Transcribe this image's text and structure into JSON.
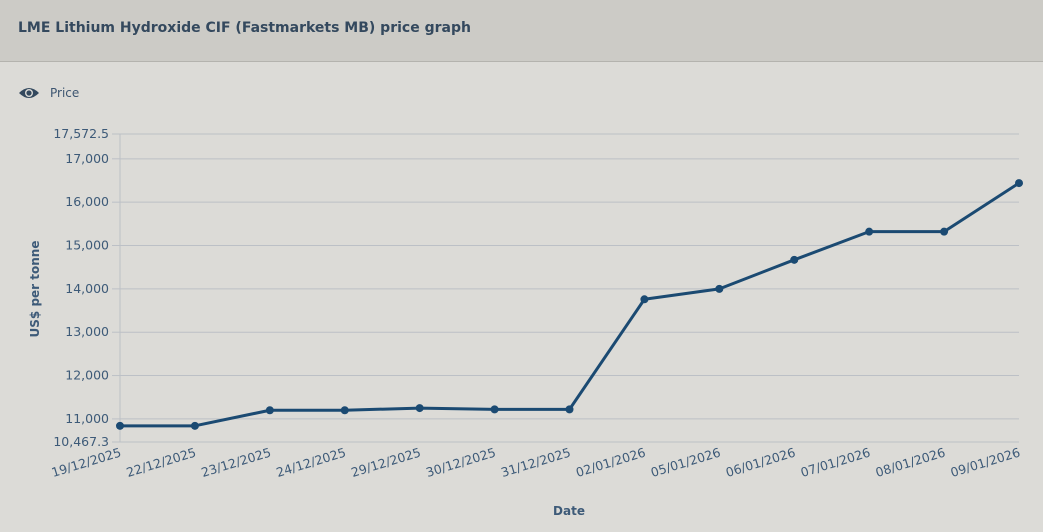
{
  "header": {
    "title": "LME Lithium Hydroxide CIF (Fastmarkets MB) price graph"
  },
  "legend": {
    "label": "Price",
    "icon": "eye-icon"
  },
  "chart_data": {
    "type": "line",
    "title": "LME Lithium Hydroxide CIF (Fastmarkets MB) price graph",
    "xlabel": "Date",
    "ylabel": "US$ per tonne",
    "ylim": [
      10467.3,
      17572.5
    ],
    "yticks": [
      10467.3,
      11000,
      12000,
      13000,
      14000,
      15000,
      16000,
      17000,
      17572.5
    ],
    "ytick_labels": [
      "10,467.3",
      "11,000",
      "12,000",
      "13,000",
      "14,000",
      "15,000",
      "16,000",
      "17,000",
      "17,572.5"
    ],
    "categories": [
      "19/12/2025",
      "22/12/2025",
      "23/12/2025",
      "24/12/2025",
      "29/12/2025",
      "30/12/2025",
      "31/12/2025",
      "02/01/2026",
      "05/01/2026",
      "06/01/2026",
      "07/01/2026",
      "08/01/2026",
      "09/01/2026"
    ],
    "series": [
      {
        "name": "Price",
        "color": "#1b4a72",
        "values": [
          10840,
          10840,
          11200,
          11200,
          11250,
          11220,
          11220,
          13760,
          14000,
          14670,
          15320,
          15320,
          16440
        ]
      }
    ],
    "grid": true,
    "legend_position": "top-left"
  }
}
